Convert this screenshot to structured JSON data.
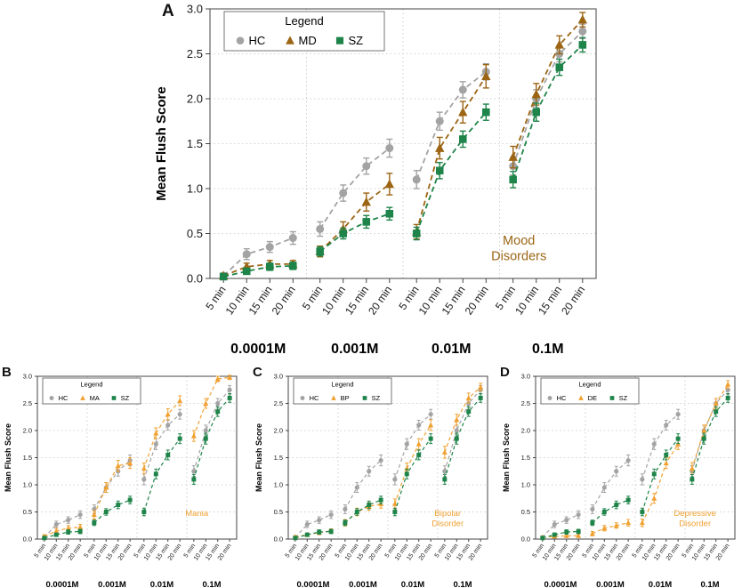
{
  "figure": {
    "background": "#ffffff",
    "ylabel": "Mean Flush Score",
    "legend_title": "Legend",
    "time_labels": [
      "5 min",
      "10 min",
      "15 min",
      "20 min"
    ],
    "conc_labels": [
      "0.0001M",
      "0.001M",
      "0.01M",
      "0.1M"
    ],
    "colors": {
      "hc_gray": "#a3a3a3",
      "md_brown": "#9c6514",
      "sz_green": "#1e8449",
      "mania_orange": "#f0a132"
    }
  },
  "chart_data": [
    {
      "panel": "A",
      "type": "line",
      "title": "",
      "annotation": "Mood Disorders",
      "annotation_lines": [
        "Mood",
        "Disorders"
      ],
      "annotation_color": "#9c6514",
      "ylabel": "Mean Flush Score",
      "ylim": [
        0,
        3.0
      ],
      "yticks": [
        0.0,
        0.5,
        1.0,
        1.5,
        2.0,
        2.5,
        3.0
      ],
      "x_groups": [
        "0.0001M",
        "0.001M",
        "0.01M",
        "0.1M"
      ],
      "x_within": [
        "5 min",
        "10 min",
        "15 min",
        "20 min"
      ],
      "grid": true,
      "legend_position": "top-left",
      "series": [
        {
          "name": "HC",
          "marker": "circle",
          "color": "#a3a3a3",
          "values": [
            [
              0.03,
              0.27,
              0.35,
              0.45
            ],
            [
              0.55,
              0.95,
              1.25,
              1.45
            ],
            [
              1.1,
              1.75,
              2.1,
              2.3
            ],
            [
              1.25,
              2.0,
              2.5,
              2.75
            ]
          ],
          "errors": [
            [
              0.03,
              0.06,
              0.06,
              0.07
            ],
            [
              0.08,
              0.09,
              0.09,
              0.1
            ],
            [
              0.1,
              0.1,
              0.09,
              0.09
            ],
            [
              0.1,
              0.1,
              0.09,
              0.08
            ]
          ]
        },
        {
          "name": "MD",
          "marker": "triangle",
          "color": "#9c6514",
          "values": [
            [
              0.03,
              0.13,
              0.16,
              0.16
            ],
            [
              0.3,
              0.55,
              0.85,
              1.05
            ],
            [
              0.52,
              1.45,
              1.85,
              2.25
            ],
            [
              1.35,
              2.05,
              2.6,
              2.88
            ]
          ],
          "errors": [
            [
              0.02,
              0.04,
              0.04,
              0.04
            ],
            [
              0.06,
              0.08,
              0.1,
              0.12
            ],
            [
              0.08,
              0.12,
              0.12,
              0.13
            ],
            [
              0.12,
              0.12,
              0.1,
              0.08
            ]
          ]
        },
        {
          "name": "SZ",
          "marker": "square",
          "color": "#1e8449",
          "values": [
            [
              0.02,
              0.08,
              0.13,
              0.14
            ],
            [
              0.3,
              0.5,
              0.63,
              0.72
            ],
            [
              0.5,
              1.2,
              1.55,
              1.85
            ],
            [
              1.1,
              1.85,
              2.35,
              2.6
            ]
          ],
          "errors": [
            [
              0.02,
              0.03,
              0.04,
              0.04
            ],
            [
              0.05,
              0.06,
              0.07,
              0.07
            ],
            [
              0.07,
              0.09,
              0.09,
              0.09
            ],
            [
              0.09,
              0.1,
              0.09,
              0.08
            ]
          ]
        }
      ]
    },
    {
      "panel": "B",
      "type": "line",
      "title": "",
      "annotation": "Mania",
      "annotation_lines": [
        "Mania"
      ],
      "annotation_color": "#f0a132",
      "ylabel": "Mean Flush Score",
      "ylim": [
        0,
        3.0
      ],
      "yticks": [
        0.0,
        0.5,
        1.0,
        1.5,
        2.0,
        2.5,
        3.0
      ],
      "x_groups": [
        "0.0001M",
        "0.001M",
        "0.01M",
        "0.1M"
      ],
      "x_within": [
        "5 min",
        "10 min",
        "15 min",
        "20 min"
      ],
      "grid": true,
      "legend_position": "top-left",
      "series": [
        {
          "name": "HC",
          "marker": "circle",
          "color": "#a3a3a3",
          "values": [
            [
              0.03,
              0.27,
              0.35,
              0.45
            ],
            [
              0.55,
              0.95,
              1.25,
              1.45
            ],
            [
              1.1,
              1.75,
              2.1,
              2.3
            ],
            [
              1.25,
              2.0,
              2.5,
              2.75
            ]
          ],
          "errors": [
            [
              0.03,
              0.06,
              0.06,
              0.07
            ],
            [
              0.08,
              0.09,
              0.09,
              0.1
            ],
            [
              0.1,
              0.1,
              0.09,
              0.09
            ],
            [
              0.1,
              0.1,
              0.09,
              0.08
            ]
          ]
        },
        {
          "name": "MA",
          "marker": "triangle",
          "color": "#f0a132",
          "values": [
            [
              0.05,
              0.15,
              0.2,
              0.22
            ],
            [
              0.45,
              0.95,
              1.35,
              1.4
            ],
            [
              1.3,
              1.95,
              2.3,
              2.55
            ],
            [
              1.9,
              2.5,
              2.95,
              2.98
            ]
          ],
          "errors": [
            [
              0.03,
              0.05,
              0.05,
              0.05
            ],
            [
              0.08,
              0.09,
              0.1,
              0.1
            ],
            [
              0.1,
              0.1,
              0.1,
              0.09
            ],
            [
              0.1,
              0.09,
              0.05,
              0.04
            ]
          ]
        },
        {
          "name": "SZ",
          "marker": "square",
          "color": "#1e8449",
          "values": [
            [
              0.02,
              0.08,
              0.13,
              0.14
            ],
            [
              0.3,
              0.5,
              0.63,
              0.72
            ],
            [
              0.5,
              1.2,
              1.55,
              1.85
            ],
            [
              1.1,
              1.85,
              2.35,
              2.6
            ]
          ],
          "errors": [
            [
              0.02,
              0.03,
              0.04,
              0.04
            ],
            [
              0.05,
              0.06,
              0.07,
              0.07
            ],
            [
              0.07,
              0.09,
              0.09,
              0.09
            ],
            [
              0.09,
              0.1,
              0.09,
              0.08
            ]
          ]
        }
      ]
    },
    {
      "panel": "C",
      "type": "line",
      "title": "",
      "annotation": "Bipolar Disorder",
      "annotation_lines": [
        "Bipolar",
        "Disorder"
      ],
      "annotation_color": "#f0a132",
      "ylabel": "Mean Flush Score",
      "ylim": [
        0,
        3.0
      ],
      "yticks": [
        0.0,
        0.5,
        1.0,
        1.5,
        2.0,
        2.5,
        3.0
      ],
      "x_groups": [
        "0.0001M",
        "0.001M",
        "0.01M",
        "0.1M"
      ],
      "x_within": [
        "5 min",
        "10 min",
        "15 min",
        "20 min"
      ],
      "grid": true,
      "legend_position": "top-left",
      "series": [
        {
          "name": "HC",
          "marker": "circle",
          "color": "#a3a3a3",
          "values": [
            [
              0.03,
              0.27,
              0.35,
              0.45
            ],
            [
              0.55,
              0.95,
              1.25,
              1.45
            ],
            [
              1.1,
              1.75,
              2.1,
              2.3
            ],
            [
              1.25,
              2.0,
              2.5,
              2.75
            ]
          ],
          "errors": [
            [
              0.03,
              0.06,
              0.06,
              0.07
            ],
            [
              0.08,
              0.09,
              0.09,
              0.1
            ],
            [
              0.1,
              0.1,
              0.09,
              0.09
            ],
            [
              0.1,
              0.1,
              0.09,
              0.08
            ]
          ]
        },
        {
          "name": "BP",
          "marker": "triangle",
          "color": "#f0a132",
          "values": [
            [
              0.04,
              0.08,
              0.12,
              0.15
            ],
            [
              0.3,
              0.5,
              0.6,
              0.65
            ],
            [
              0.65,
              1.3,
              1.75,
              2.1
            ],
            [
              1.6,
              2.2,
              2.6,
              2.8
            ]
          ],
          "errors": [
            [
              0.02,
              0.03,
              0.04,
              0.04
            ],
            [
              0.06,
              0.07,
              0.07,
              0.08
            ],
            [
              0.09,
              0.1,
              0.1,
              0.1
            ],
            [
              0.11,
              0.1,
              0.09,
              0.07
            ]
          ]
        },
        {
          "name": "SZ",
          "marker": "square",
          "color": "#1e8449",
          "values": [
            [
              0.02,
              0.08,
              0.13,
              0.14
            ],
            [
              0.3,
              0.5,
              0.63,
              0.72
            ],
            [
              0.5,
              1.2,
              1.55,
              1.85
            ],
            [
              1.1,
              1.85,
              2.35,
              2.6
            ]
          ],
          "errors": [
            [
              0.02,
              0.03,
              0.04,
              0.04
            ],
            [
              0.05,
              0.06,
              0.07,
              0.07
            ],
            [
              0.07,
              0.09,
              0.09,
              0.09
            ],
            [
              0.09,
              0.1,
              0.09,
              0.08
            ]
          ]
        }
      ]
    },
    {
      "panel": "D",
      "type": "line",
      "title": "",
      "annotation": "Depressive Disorder",
      "annotation_lines": [
        "Depressive",
        "Disorder"
      ],
      "annotation_color": "#f0a132",
      "ylabel": "Mean Flush Score",
      "ylim": [
        0,
        3.0
      ],
      "yticks": [
        0.0,
        0.5,
        1.0,
        1.5,
        2.0,
        2.5,
        3.0
      ],
      "x_groups": [
        "0.0001M",
        "0.001M",
        "0.01M",
        "0.1M"
      ],
      "x_within": [
        "5 min",
        "10 min",
        "15 min",
        "20 min"
      ],
      "grid": true,
      "legend_position": "top-left",
      "series": [
        {
          "name": "HC",
          "marker": "circle",
          "color": "#a3a3a3",
          "values": [
            [
              0.03,
              0.27,
              0.35,
              0.45
            ],
            [
              0.55,
              0.95,
              1.25,
              1.45
            ],
            [
              1.1,
              1.75,
              2.1,
              2.3
            ],
            [
              1.25,
              2.0,
              2.5,
              2.75
            ]
          ],
          "errors": [
            [
              0.03,
              0.06,
              0.06,
              0.07
            ],
            [
              0.08,
              0.09,
              0.09,
              0.1
            ],
            [
              0.1,
              0.1,
              0.09,
              0.09
            ],
            [
              0.1,
              0.1,
              0.09,
              0.08
            ]
          ]
        },
        {
          "name": "DE",
          "marker": "triangle",
          "color": "#f0a132",
          "values": [
            [
              0.03,
              0.05,
              0.06,
              0.06
            ],
            [
              0.1,
              0.2,
              0.25,
              0.3
            ],
            [
              0.3,
              0.75,
              1.4,
              1.75
            ],
            [
              1.3,
              2.0,
              2.5,
              2.85
            ]
          ],
          "errors": [
            [
              0.02,
              0.02,
              0.03,
              0.03
            ],
            [
              0.04,
              0.05,
              0.05,
              0.06
            ],
            [
              0.07,
              0.09,
              0.1,
              0.1
            ],
            [
              0.11,
              0.1,
              0.09,
              0.07
            ]
          ]
        },
        {
          "name": "SZ",
          "marker": "square",
          "color": "#1e8449",
          "values": [
            [
              0.02,
              0.08,
              0.13,
              0.14
            ],
            [
              0.3,
              0.5,
              0.63,
              0.72
            ],
            [
              0.5,
              1.2,
              1.55,
              1.85
            ],
            [
              1.1,
              1.85,
              2.35,
              2.6
            ]
          ],
          "errors": [
            [
              0.02,
              0.03,
              0.04,
              0.04
            ],
            [
              0.05,
              0.06,
              0.07,
              0.07
            ],
            [
              0.07,
              0.09,
              0.09,
              0.09
            ],
            [
              0.09,
              0.1,
              0.09,
              0.08
            ]
          ]
        }
      ]
    }
  ]
}
